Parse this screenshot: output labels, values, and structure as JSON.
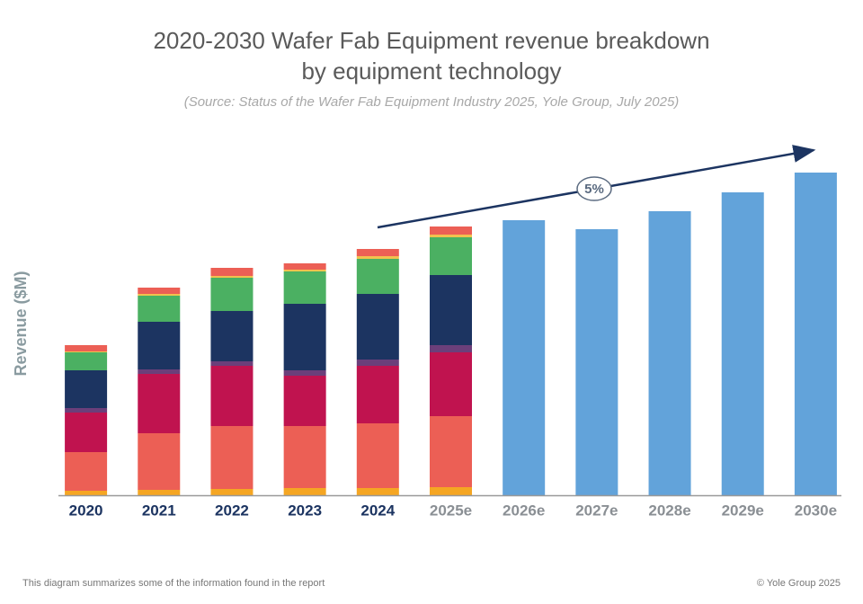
{
  "chart_data": {
    "type": "stacked_bar",
    "title": [
      "2020-2030 Wafer Fab Equipment revenue breakdown",
      "by equipment technology"
    ],
    "subtitle": "(Source: Status of the Wafer Fab Equipment Industry 2025, Yole Group, July 2025)",
    "y_label": "Revenue ($M)",
    "categories": [
      "2020",
      "2021",
      "2022",
      "2023",
      "2024",
      "2025e",
      "2026e",
      "2027e",
      "2028e",
      "2029e",
      "2030e"
    ],
    "category_label_colors": [
      "#1c3461",
      "#1c3461",
      "#1c3461",
      "#1c3461",
      "#1c3461",
      "#8a8f94",
      "#8a8f94",
      "#8a8f94",
      "#8a8f94",
      "#8a8f94",
      "#8a8f94"
    ],
    "ylim": [
      0,
      360
    ],
    "series": [
      {
        "color": "#f5a623",
        "values": [
          5,
          6,
          7,
          8,
          8,
          9,
          null,
          null,
          null,
          null,
          null
        ]
      },
      {
        "color": "#ec5f55",
        "values": [
          43,
          63,
          70,
          69,
          72,
          79,
          null,
          null,
          null,
          null,
          null
        ]
      },
      {
        "color": "#c0134f",
        "values": [
          44,
          66,
          67,
          56,
          64,
          71,
          null,
          null,
          null,
          null,
          null
        ]
      },
      {
        "color": "#6b3f7a",
        "values": [
          5,
          5,
          5,
          6,
          7,
          8,
          null,
          null,
          null,
          null,
          null
        ]
      },
      {
        "color": "#1c3461",
        "values": [
          42,
          53,
          56,
          74,
          73,
          78,
          null,
          null,
          null,
          null,
          null
        ]
      },
      {
        "color": "#4bb062",
        "values": [
          20,
          29,
          37,
          36,
          39,
          42,
          null,
          null,
          null,
          null,
          null
        ]
      },
      {
        "color": "#f2c14e",
        "values": [
          1,
          2,
          2,
          2,
          3,
          3,
          null,
          null,
          null,
          null,
          null
        ]
      },
      {
        "color": "#ec5f55",
        "values": [
          7,
          7,
          9,
          7,
          8,
          9,
          null,
          null,
          null,
          null,
          null
        ]
      },
      {
        "color": "#62a3da",
        "values": [
          null,
          null,
          null,
          null,
          null,
          null,
          306,
          296,
          316,
          337,
          359
        ]
      }
    ],
    "annotation": "5%",
    "footer_left": "This diagram summarizes some of the information found in the report",
    "footer_right": "© Yole Group 2025"
  }
}
